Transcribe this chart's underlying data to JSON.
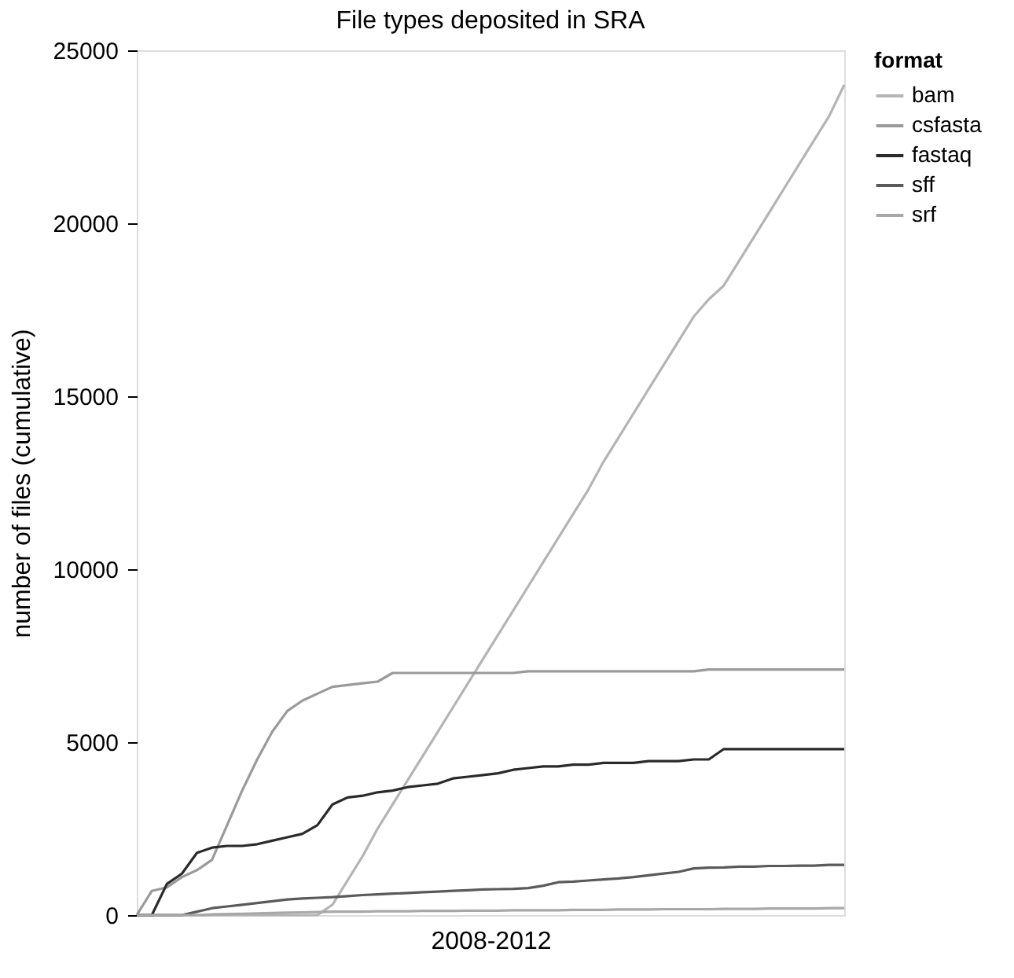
{
  "chart_data": {
    "type": "line",
    "title": "File types deposited in SRA",
    "xlabel": "2008-2012",
    "ylabel": "number of files (cumulative)",
    "legend_title": "format",
    "categories": [
      null,
      null,
      null,
      null,
      null,
      null,
      null,
      null,
      null,
      null,
      null,
      null,
      null,
      null,
      null,
      null,
      null,
      null,
      null,
      null,
      null,
      null,
      null,
      null,
      null,
      null,
      null,
      null,
      null,
      null,
      null,
      null,
      null,
      null,
      null,
      null,
      null,
      null,
      null,
      null,
      null,
      null,
      null,
      null,
      null,
      null,
      null,
      null
    ],
    "series": [
      {
        "name": "bam",
        "color": "#b4b4b4",
        "values": [
          0,
          0,
          0,
          0,
          0,
          0,
          0,
          0,
          0,
          0,
          0,
          0,
          0,
          300,
          1000,
          1700,
          2500,
          3200,
          3900,
          4600,
          5300,
          6000,
          6700,
          7400,
          8100,
          8800,
          9500,
          10200,
          10900,
          11600,
          12300,
          13100,
          13800,
          14500,
          15200,
          15900,
          16600,
          17300,
          17800,
          18200,
          18900,
          19600,
          20300,
          21000,
          21700,
          22400,
          23100,
          24000
        ]
      },
      {
        "name": "csfasta",
        "color": "#9a9a9a",
        "values": [
          0,
          700,
          800,
          1100,
          1300,
          1600,
          2600,
          3600,
          4500,
          5300,
          5900,
          6200,
          6400,
          6600,
          6650,
          6700,
          6750,
          7000,
          7000,
          7000,
          7000,
          7000,
          7000,
          7000,
          7000,
          7000,
          7050,
          7050,
          7050,
          7050,
          7050,
          7050,
          7050,
          7050,
          7050,
          7050,
          7050,
          7050,
          7100,
          7100,
          7100,
          7100,
          7100,
          7100,
          7100,
          7100,
          7100,
          7100
        ]
      },
      {
        "name": "fastaq",
        "color": "#2a2a2a",
        "values": [
          0,
          0,
          900,
          1200,
          1800,
          1950,
          2000,
          2000,
          2050,
          2150,
          2250,
          2350,
          2600,
          3200,
          3400,
          3450,
          3550,
          3600,
          3700,
          3750,
          3800,
          3950,
          4000,
          4050,
          4100,
          4200,
          4250,
          4300,
          4300,
          4350,
          4350,
          4400,
          4400,
          4400,
          4450,
          4450,
          4450,
          4500,
          4500,
          4800,
          4800,
          4800,
          4800,
          4800,
          4800,
          4800,
          4800,
          4800
        ]
      },
      {
        "name": "sff",
        "color": "#5a5a5a",
        "values": [
          0,
          0,
          0,
          0,
          100,
          200,
          250,
          300,
          350,
          400,
          450,
          480,
          500,
          520,
          550,
          580,
          600,
          620,
          640,
          660,
          680,
          700,
          720,
          740,
          750,
          760,
          780,
          850,
          950,
          970,
          1000,
          1030,
          1060,
          1100,
          1150,
          1200,
          1250,
          1350,
          1370,
          1380,
          1400,
          1400,
          1420,
          1420,
          1430,
          1430,
          1450,
          1450
        ]
      },
      {
        "name": "srf",
        "color": "#a8a8a8",
        "values": [
          0,
          0,
          0,
          0,
          0,
          20,
          30,
          40,
          50,
          60,
          70,
          80,
          90,
          100,
          100,
          100,
          110,
          110,
          110,
          120,
          120,
          120,
          130,
          130,
          130,
          140,
          140,
          140,
          140,
          150,
          150,
          150,
          160,
          160,
          160,
          170,
          170,
          170,
          170,
          180,
          180,
          180,
          190,
          190,
          190,
          190,
          200,
          200
        ]
      }
    ],
    "ylim": [
      0,
      25000
    ],
    "yticks": [
      0,
      5000,
      10000,
      15000,
      20000,
      25000
    ],
    "grid": false,
    "legend": "right",
    "tick_labels": "y",
    "marker": "none",
    "line_style": "solid"
  }
}
